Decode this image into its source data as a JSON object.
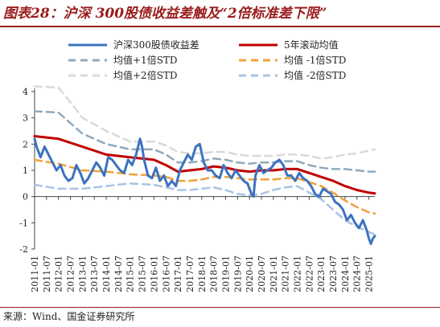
{
  "title": "图表28：沪深 300股债收益差触及“2倍标准差下限”",
  "source": "来源：Wind、国金证券研究所",
  "chart_data": {
    "type": "line",
    "xlabel": "",
    "ylabel": "",
    "ylim": [
      -2,
      4
    ],
    "yticks": [
      -2,
      -1,
      0,
      1,
      2,
      3,
      4
    ],
    "x_ticks": [
      "2011-01",
      "2011-07",
      "2012-01",
      "2012-07",
      "2013-01",
      "2013-07",
      "2014-01",
      "2014-07",
      "2015-01",
      "2015-07",
      "2016-01",
      "2016-07",
      "2017-01",
      "2017-07",
      "2018-01",
      "2018-07",
      "2019-01",
      "2019-07",
      "2020-01",
      "2020-07",
      "2021-01",
      "2021-07",
      "2022-01",
      "2022-07",
      "2023-01",
      "2023-07",
      "2024-01",
      "2024-07",
      "2025-01"
    ],
    "x_range": [
      "2011-01",
      "2025-04"
    ],
    "grid": false,
    "legend_position": "top",
    "series": [
      {
        "name": "沪深300股债收益差",
        "color": "#3d72c0",
        "style": "solid",
        "points": [
          [
            "2011-01",
            2.2
          ],
          [
            "2011-02",
            1.9
          ],
          [
            "2011-04",
            1.5
          ],
          [
            "2011-06",
            1.9
          ],
          [
            "2011-08",
            1.6
          ],
          [
            "2011-10",
            1.3
          ],
          [
            "2011-12",
            1.0
          ],
          [
            "2012-02",
            1.2
          ],
          [
            "2012-04",
            0.8
          ],
          [
            "2012-06",
            0.6
          ],
          [
            "2012-08",
            0.7
          ],
          [
            "2012-10",
            1.2
          ],
          [
            "2012-12",
            0.9
          ],
          [
            "2013-02",
            0.5
          ],
          [
            "2013-04",
            0.7
          ],
          [
            "2013-06",
            1.0
          ],
          [
            "2013-08",
            1.3
          ],
          [
            "2013-10",
            1.1
          ],
          [
            "2013-12",
            0.8
          ],
          [
            "2014-02",
            1.5
          ],
          [
            "2014-04",
            1.4
          ],
          [
            "2014-06",
            1.2
          ],
          [
            "2014-08",
            1.0
          ],
          [
            "2014-10",
            0.9
          ],
          [
            "2014-12",
            1.4
          ],
          [
            "2015-02",
            1.2
          ],
          [
            "2015-04",
            1.6
          ],
          [
            "2015-06",
            2.2
          ],
          [
            "2015-07",
            1.9
          ],
          [
            "2015-08",
            1.4
          ],
          [
            "2015-10",
            0.8
          ],
          [
            "2015-12",
            0.7
          ],
          [
            "2016-02",
            1.1
          ],
          [
            "2016-04",
            0.6
          ],
          [
            "2016-06",
            0.8
          ],
          [
            "2016-08",
            0.4
          ],
          [
            "2016-10",
            0.6
          ],
          [
            "2016-12",
            0.4
          ],
          [
            "2017-02",
            1.0
          ],
          [
            "2017-04",
            1.3
          ],
          [
            "2017-06",
            1.6
          ],
          [
            "2017-08",
            1.4
          ],
          [
            "2017-10",
            1.9
          ],
          [
            "2017-12",
            2.0
          ],
          [
            "2018-02",
            1.3
          ],
          [
            "2018-04",
            1.0
          ],
          [
            "2018-06",
            1.0
          ],
          [
            "2018-08",
            0.8
          ],
          [
            "2018-10",
            0.7
          ],
          [
            "2018-12",
            1.2
          ],
          [
            "2019-02",
            0.9
          ],
          [
            "2019-04",
            0.7
          ],
          [
            "2019-06",
            1.0
          ],
          [
            "2019-08",
            0.8
          ],
          [
            "2019-10",
            0.6
          ],
          [
            "2019-12",
            0.5
          ],
          [
            "2020-02",
            0.1
          ],
          [
            "2020-03",
            0.0
          ],
          [
            "2020-04",
            0.8
          ],
          [
            "2020-06",
            1.2
          ],
          [
            "2020-08",
            0.9
          ],
          [
            "2020-10",
            1.0
          ],
          [
            "2020-12",
            1.1
          ],
          [
            "2021-02",
            1.3
          ],
          [
            "2021-04",
            1.4
          ],
          [
            "2021-06",
            1.2
          ],
          [
            "2021-08",
            0.8
          ],
          [
            "2021-10",
            0.8
          ],
          [
            "2021-12",
            0.6
          ],
          [
            "2022-02",
            0.9
          ],
          [
            "2022-04",
            0.7
          ],
          [
            "2022-06",
            0.6
          ],
          [
            "2022-08",
            0.4
          ],
          [
            "2022-10",
            0.1
          ],
          [
            "2022-12",
            0.0
          ],
          [
            "2023-02",
            0.3
          ],
          [
            "2023-04",
            0.2
          ],
          [
            "2023-06",
            0.1
          ],
          [
            "2023-08",
            -0.2
          ],
          [
            "2023-10",
            -0.3
          ],
          [
            "2023-12",
            -0.5
          ],
          [
            "2024-02",
            -0.9
          ],
          [
            "2024-04",
            -0.7
          ],
          [
            "2024-06",
            -1.0
          ],
          [
            "2024-08",
            -1.2
          ],
          [
            "2024-10",
            -0.9
          ],
          [
            "2024-12",
            -1.3
          ],
          [
            "2025-01",
            -1.6
          ],
          [
            "2025-02",
            -1.8
          ],
          [
            "2025-03",
            -1.6
          ],
          [
            "2025-04",
            -1.5
          ]
        ]
      },
      {
        "name": "5年滚动均值",
        "color": "#c00000",
        "style": "solid",
        "points": [
          [
            "2011-01",
            2.3
          ],
          [
            "2012-01",
            2.2
          ],
          [
            "2013-01",
            1.9
          ],
          [
            "2014-01",
            1.6
          ],
          [
            "2015-01",
            1.5
          ],
          [
            "2016-01",
            1.4
          ],
          [
            "2016-07",
            1.2
          ],
          [
            "2017-01",
            0.95
          ],
          [
            "2017-07",
            1.0
          ],
          [
            "2018-01",
            1.05
          ],
          [
            "2018-07",
            1.15
          ],
          [
            "2019-01",
            1.1
          ],
          [
            "2019-07",
            1.0
          ],
          [
            "2020-01",
            0.95
          ],
          [
            "2020-07",
            1.0
          ],
          [
            "2021-01",
            1.0
          ],
          [
            "2021-07",
            1.05
          ],
          [
            "2022-01",
            1.05
          ],
          [
            "2022-07",
            0.9
          ],
          [
            "2023-01",
            0.75
          ],
          [
            "2023-07",
            0.6
          ],
          [
            "2024-01",
            0.4
          ],
          [
            "2024-07",
            0.25
          ],
          [
            "2025-01",
            0.15
          ],
          [
            "2025-04",
            0.12
          ]
        ]
      },
      {
        "name": "均值+1倍STD",
        "color": "#8fa9bd",
        "style": "dashed",
        "points": [
          [
            "2011-01",
            3.25
          ],
          [
            "2012-01",
            3.2
          ],
          [
            "2012-07",
            2.8
          ],
          [
            "2013-01",
            2.4
          ],
          [
            "2014-01",
            2.0
          ],
          [
            "2015-01",
            1.8
          ],
          [
            "2016-01",
            1.8
          ],
          [
            "2016-07",
            1.6
          ],
          [
            "2017-01",
            1.3
          ],
          [
            "2017-07",
            1.3
          ],
          [
            "2018-01",
            1.35
          ],
          [
            "2018-07",
            1.45
          ],
          [
            "2019-01",
            1.4
          ],
          [
            "2019-07",
            1.3
          ],
          [
            "2020-01",
            1.25
          ],
          [
            "2020-07",
            1.3
          ],
          [
            "2021-01",
            1.3
          ],
          [
            "2021-07",
            1.35
          ],
          [
            "2022-01",
            1.35
          ],
          [
            "2022-07",
            1.2
          ],
          [
            "2023-01",
            1.1
          ],
          [
            "2023-07",
            1.05
          ],
          [
            "2024-01",
            1.05
          ],
          [
            "2024-07",
            1.0
          ],
          [
            "2025-01",
            0.95
          ],
          [
            "2025-04",
            0.95
          ]
        ]
      },
      {
        "name": "均值 -1倍STD",
        "color": "#f0a13a",
        "style": "dashed",
        "points": [
          [
            "2011-01",
            1.4
          ],
          [
            "2012-01",
            1.25
          ],
          [
            "2013-01",
            1.0
          ],
          [
            "2014-01",
            0.95
          ],
          [
            "2015-01",
            0.85
          ],
          [
            "2016-01",
            0.8
          ],
          [
            "2016-07",
            0.75
          ],
          [
            "2017-01",
            0.6
          ],
          [
            "2017-07",
            0.6
          ],
          [
            "2018-01",
            0.65
          ],
          [
            "2018-07",
            0.75
          ],
          [
            "2019-01",
            0.75
          ],
          [
            "2019-07",
            0.7
          ],
          [
            "2020-01",
            0.65
          ],
          [
            "2020-07",
            0.65
          ],
          [
            "2021-01",
            0.65
          ],
          [
            "2021-07",
            0.7
          ],
          [
            "2022-01",
            0.7
          ],
          [
            "2022-07",
            0.55
          ],
          [
            "2023-01",
            0.4
          ],
          [
            "2023-07",
            0.15
          ],
          [
            "2024-01",
            -0.15
          ],
          [
            "2024-07",
            -0.4
          ],
          [
            "2025-01",
            -0.6
          ],
          [
            "2025-04",
            -0.65
          ]
        ]
      },
      {
        "name": "均值+2倍STD",
        "color": "#d9d9d9",
        "style": "dashed",
        "points": [
          [
            "2011-01",
            4.2
          ],
          [
            "2012-01",
            4.15
          ],
          [
            "2012-07",
            3.6
          ],
          [
            "2013-01",
            3.0
          ],
          [
            "2014-01",
            2.5
          ],
          [
            "2015-01",
            2.1
          ],
          [
            "2016-01",
            2.1
          ],
          [
            "2016-07",
            1.95
          ],
          [
            "2017-01",
            1.7
          ],
          [
            "2017-07",
            1.65
          ],
          [
            "2018-01",
            1.65
          ],
          [
            "2018-07",
            1.7
          ],
          [
            "2019-01",
            1.7
          ],
          [
            "2019-07",
            1.6
          ],
          [
            "2020-01",
            1.55
          ],
          [
            "2020-07",
            1.55
          ],
          [
            "2021-01",
            1.55
          ],
          [
            "2021-07",
            1.6
          ],
          [
            "2022-01",
            1.6
          ],
          [
            "2022-07",
            1.55
          ],
          [
            "2023-01",
            1.45
          ],
          [
            "2023-07",
            1.5
          ],
          [
            "2024-01",
            1.6
          ],
          [
            "2024-07",
            1.65
          ],
          [
            "2025-01",
            1.75
          ],
          [
            "2025-04",
            1.8
          ]
        ]
      },
      {
        "name": "均值 -2倍STD",
        "color": "#a7c3e6",
        "style": "dashed",
        "points": [
          [
            "2011-01",
            0.45
          ],
          [
            "2012-01",
            0.3
          ],
          [
            "2013-01",
            0.3
          ],
          [
            "2014-01",
            0.4
          ],
          [
            "2015-01",
            0.5
          ],
          [
            "2016-01",
            0.45
          ],
          [
            "2016-07",
            0.35
          ],
          [
            "2017-01",
            0.25
          ],
          [
            "2017-07",
            0.25
          ],
          [
            "2018-01",
            0.3
          ],
          [
            "2018-07",
            0.35
          ],
          [
            "2019-01",
            0.25
          ],
          [
            "2019-07",
            0.1
          ],
          [
            "2020-01",
            0.05
          ],
          [
            "2020-07",
            0.1
          ],
          [
            "2021-01",
            0.25
          ],
          [
            "2021-07",
            0.35
          ],
          [
            "2022-01",
            0.4
          ],
          [
            "2022-07",
            0.15
          ],
          [
            "2023-01",
            -0.1
          ],
          [
            "2023-07",
            -0.5
          ],
          [
            "2024-01",
            -0.9
          ],
          [
            "2024-07",
            -1.15
          ],
          [
            "2025-01",
            -1.35
          ],
          [
            "2025-04",
            -1.45
          ]
        ]
      }
    ]
  }
}
